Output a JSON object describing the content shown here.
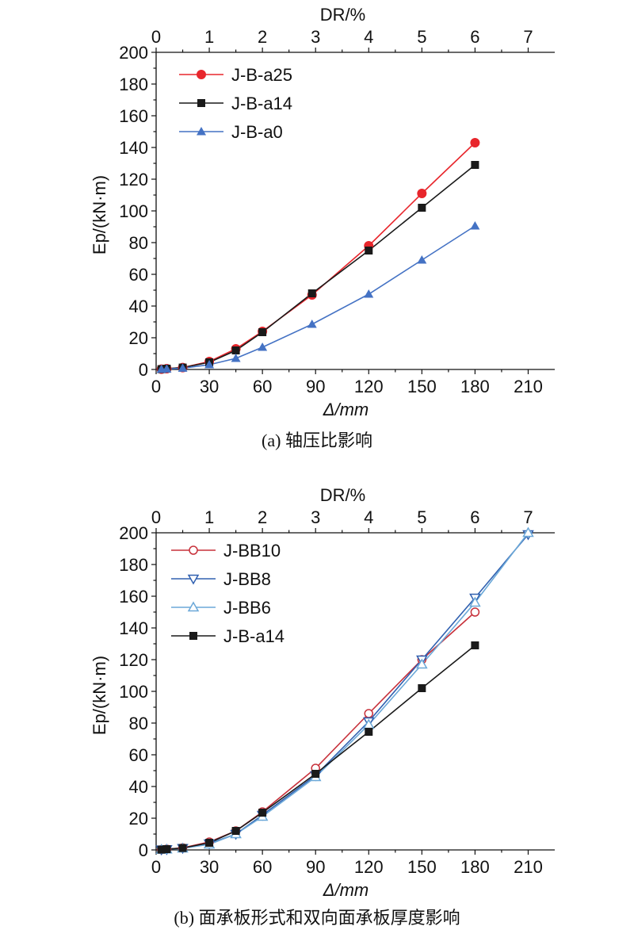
{
  "chart_data": [
    {
      "type": "line",
      "caption": "(a) 轴压比影响",
      "xlabel": "Δ/mm",
      "ylabel": "Ep/(kN·m)",
      "top_xlabel": "DR/%",
      "xlim": [
        0,
        225
      ],
      "ylim": [
        0,
        200
      ],
      "top_xlim": [
        0,
        7.5
      ],
      "xticks": [
        0,
        30,
        60,
        90,
        120,
        150,
        180,
        210
      ],
      "yticks": [
        0,
        20,
        40,
        60,
        80,
        100,
        120,
        140,
        160,
        180,
        200
      ],
      "top_ticks": [
        0,
        1,
        2,
        3,
        4,
        5,
        6,
        7
      ],
      "grid": false,
      "legend_position": "top-left",
      "series": [
        {
          "name": "J-B-a25",
          "color": "#e8262c",
          "marker": "circle",
          "x": [
            3,
            6,
            15,
            30,
            45,
            60,
            88,
            120,
            150,
            180
          ],
          "y": [
            0.2,
            0.5,
            1.2,
            5,
            13,
            24,
            47,
            78,
            111,
            143
          ]
        },
        {
          "name": "J-B-a14",
          "color": "#1a1a1a",
          "marker": "square",
          "x": [
            3,
            6,
            15,
            30,
            45,
            60,
            88,
            120,
            150,
            180
          ],
          "y": [
            0.2,
            0.5,
            1.2,
            4.5,
            12,
            23.5,
            48,
            75,
            102,
            129
          ]
        },
        {
          "name": "J-B-a0",
          "color": "#4472c4",
          "marker": "triangle",
          "x": [
            3,
            6,
            15,
            30,
            45,
            60,
            88,
            120,
            150,
            180
          ],
          "y": [
            0.1,
            0.3,
            0.8,
            3,
            7,
            14,
            28.5,
            47.5,
            69,
            90.5
          ]
        }
      ]
    },
    {
      "type": "line",
      "caption": "(b) 面承板形式和双向面承板厚度影响",
      "xlabel": "Δ/mm",
      "ylabel": "Ep/(kN·m)",
      "top_xlabel": "DR/%",
      "xlim": [
        0,
        225
      ],
      "ylim": [
        0,
        200
      ],
      "top_xlim": [
        0,
        7.5
      ],
      "xticks": [
        0,
        30,
        60,
        90,
        120,
        150,
        180,
        210
      ],
      "yticks": [
        0,
        20,
        40,
        60,
        80,
        100,
        120,
        140,
        160,
        180,
        200
      ],
      "top_ticks": [
        0,
        1,
        2,
        3,
        4,
        5,
        6,
        7
      ],
      "grid": false,
      "legend_position": "top-left",
      "series": [
        {
          "name": "J-BB10",
          "color": "#c7303a",
          "marker": "circle-open",
          "x": [
            3,
            6,
            15,
            30,
            45,
            60,
            90,
            120,
            150,
            180
          ],
          "y": [
            0.2,
            0.5,
            1.3,
            5,
            12,
            24,
            51.5,
            86,
            120,
            150
          ]
        },
        {
          "name": "J-BB8",
          "color": "#3060b0",
          "marker": "triangle-down-open",
          "x": [
            3,
            6,
            15,
            30,
            45,
            60,
            90,
            120,
            150,
            180,
            210
          ],
          "y": [
            0.2,
            0.4,
            1.1,
            4,
            10,
            22,
            47,
            81,
            120,
            159,
            199
          ]
        },
        {
          "name": "J-BB6",
          "color": "#6ba8d8",
          "marker": "triangle-up-open",
          "x": [
            3,
            6,
            15,
            30,
            45,
            60,
            90,
            120,
            150,
            180,
            210
          ],
          "y": [
            0.2,
            0.4,
            1.0,
            3.5,
            10,
            21,
            46,
            79,
            117,
            156,
            200
          ]
        },
        {
          "name": "J-B-a14",
          "color": "#1a1a1a",
          "marker": "square",
          "x": [
            3,
            6,
            15,
            30,
            45,
            60,
            90,
            120,
            150,
            180
          ],
          "y": [
            0.2,
            0.5,
            1.2,
            4.5,
            12,
            23.5,
            48,
            74.5,
            102,
            129
          ]
        }
      ]
    }
  ]
}
